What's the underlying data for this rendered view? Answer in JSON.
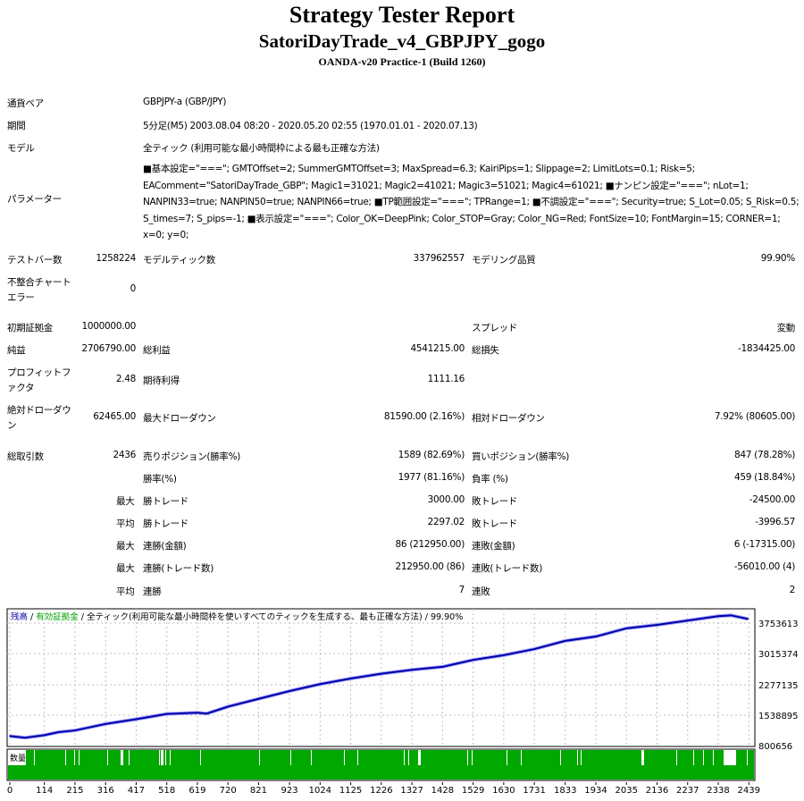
{
  "header": {
    "title": "Strategy Tester Report",
    "subtitle": "SatoriDayTrade_v4_GBPJPY_gogo",
    "server": "OANDA-v20 Practice-1 (Build 1260)"
  },
  "info": {
    "symbol_label": "通貨ペア",
    "symbol": "GBPJPY-a (GBP/JPY)",
    "period_label": "期間",
    "period": "5分足(M5) 2003.08.04 08:20 - 2020.05.20 02:55 (1970.01.01 - 2020.07.13)",
    "model_label": "モデル",
    "model": "全ティック (利用可能な最小時間枠による最も正確な方法)",
    "params_label": "パラメーター",
    "params": "■基本設定=\"===\"; GMTOffset=2; SummerGMTOffset=3; MaxSpread=6.3; KairiPips=1; Slippage=2; LimitLots=0.1; Risk=5; EAComment=\"SatoriDayTrade_GBP\"; Magic1=31021; Magic2=41021; Magic3=51021; Magic4=61021; ■ナンピン設定=\"===\"; nLot=1; NANPIN33=true; NANPIN50=true; NANPIN66=true; ■TP範囲設定=\"===\"; TPRange=1; ■不調設定=\"===\"; Security=true; S_Lot=0.05; S_Risk=0.5; S_times=7; S_pips=-1; ■表示設定=\"===\"; Color_OK=DeepPink; Color_STOP=Gray; Color_NG=Red; FontSize=10; FontMargin=15; CORNER=1; x=0; y=0;"
  },
  "stats": {
    "bars_label": "テストバー数",
    "bars": "1258224",
    "ticks_label": "モデルティック数",
    "ticks": "337962557",
    "quality_label": "モデリング品質",
    "quality": "99.90%",
    "errors_label": "不整合チャートエラー",
    "errors": "0",
    "deposit_label": "初期証拠金",
    "deposit": "1000000.00",
    "spread_label": "スプレッド",
    "spread": "変動",
    "net_label": "純益",
    "net": "2706790.00",
    "gross_profit_label": "総利益",
    "gross_profit": "4541215.00",
    "gross_loss_label": "総損失",
    "gross_loss": "-1834425.00",
    "pf_label": "プロフィットファクタ",
    "pf": "2.48",
    "expected_label": "期待利得",
    "expected": "1111.16",
    "abs_dd_label": "絶対ドローダウン",
    "abs_dd": "62465.00",
    "max_dd_label": "最大ドローダウン",
    "max_dd": "81590.00 (2.16%)",
    "rel_dd_label": "相対ドローダウン",
    "rel_dd": "7.92% (80605.00)",
    "trades_label": "総取引数",
    "trades": "2436",
    "short_label": "売りポジション(勝率%)",
    "short": "1589 (82.69%)",
    "long_label": "買いポジション(勝率%)",
    "long": "847 (78.28%)",
    "win_label": "勝率(%)",
    "win": "1977 (81.16%)",
    "loss_label": "負率 (%)",
    "loss": "459 (18.84%)",
    "max_label": "最大",
    "avg_label": "平均",
    "largest_win_label": "勝トレード",
    "largest_win": "3000.00",
    "largest_loss_label": "敗トレード",
    "largest_loss": "-24500.00",
    "avg_win_label": "勝トレード",
    "avg_win": "2297.02",
    "avg_loss_label": "敗トレード",
    "avg_loss": "-3996.57",
    "cons_wins_money_label": "連勝(金額)",
    "cons_wins_money": "86 (212950.00)",
    "cons_losses_money_label": "連敗(金額)",
    "cons_losses_money": "6 (-17315.00)",
    "cons_profit_label": "連勝(トレード数)",
    "cons_profit": "212950.00 (86)",
    "cons_loss_label": "連敗(トレード数)",
    "cons_loss": "-56010.00 (4)",
    "avg_cons_wins_label": "連勝",
    "avg_cons_wins": "7",
    "avg_cons_losses_label": "連敗",
    "avg_cons_losses": "2"
  },
  "chart_data": {
    "type": "line",
    "legend": {
      "balance": "残高",
      "equity": "有効証拠金",
      "model": "全ティック(利用可能な最小時間枠を使いすべてのティックを生成する、最も正確な方法)",
      "quality": "99.90%"
    },
    "colors": {
      "balance": "#0000a8",
      "equity": "#00a000",
      "volume": "#00a800",
      "grid": "#c0c0c0"
    },
    "volume_label": "数量",
    "y_ticks": [
      3753613,
      3015374,
      2277135,
      1538895,
      800656
    ],
    "x_ticks": [
      0,
      114,
      215,
      316,
      417,
      518,
      619,
      720,
      821,
      923,
      1024,
      1125,
      1226,
      1327,
      1428,
      1529,
      1630,
      1731,
      1833,
      1934,
      2035,
      2136,
      2237,
      2338,
      2439
    ],
    "xlim": [
      0,
      2450
    ],
    "ylim": [
      800656,
      3900000
    ],
    "series": [
      {
        "x": [
          0,
          50,
          114,
          160,
          215,
          316,
          417,
          518,
          619,
          650,
          720,
          821,
          923,
          1024,
          1125,
          1226,
          1327,
          1428,
          1529,
          1630,
          1731,
          1833,
          1934,
          2035,
          2136,
          2237,
          2338,
          2380,
          2436
        ],
        "y": [
          1000000,
          960000,
          1020000,
          1090000,
          1130000,
          1280000,
          1390000,
          1510000,
          1540000,
          1520000,
          1680000,
          1860000,
          2040000,
          2200000,
          2330000,
          2440000,
          2530000,
          2600000,
          2760000,
          2870000,
          3010000,
          3200000,
          3300000,
          3490000,
          3570000,
          3670000,
          3770000,
          3790000,
          3706790
        ]
      }
    ]
  }
}
